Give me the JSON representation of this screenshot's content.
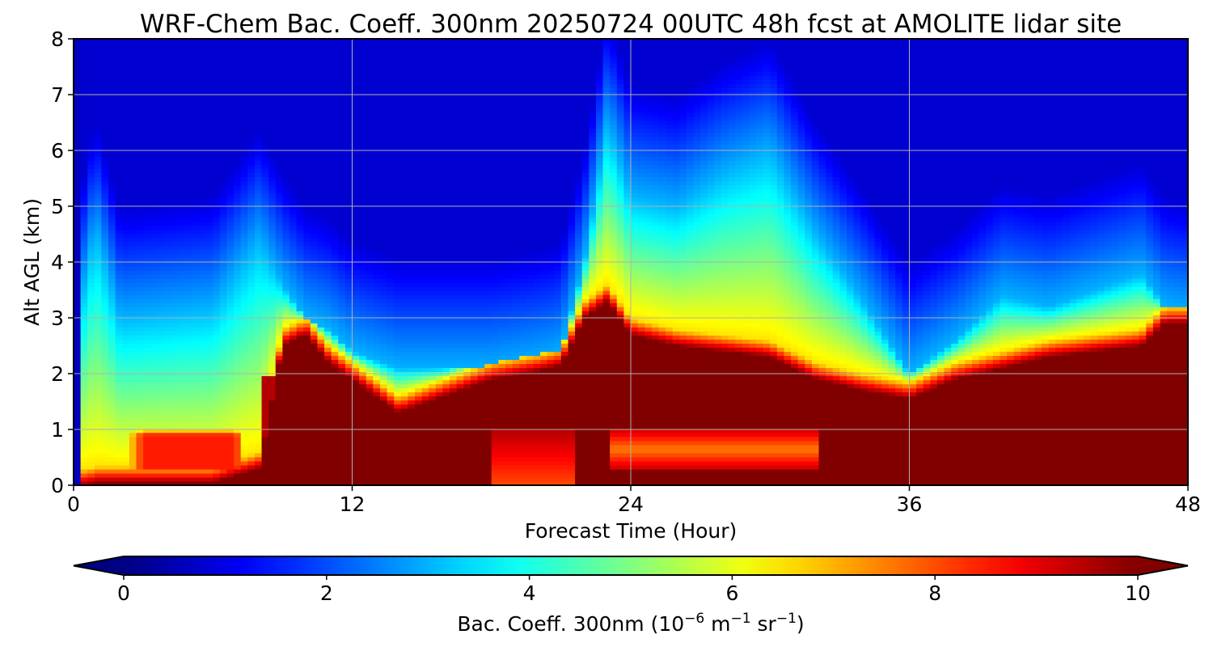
{
  "chart_data": {
    "type": "heatmap",
    "title": "WRF-Chem Bac. Coeff. 300nm  20250724 00UTC 48h fcst at AMOLITE lidar site",
    "xlabel": "Forecast Time (Hour)",
    "ylabel": "Alt AGL (km)",
    "xlim": [
      0,
      48
    ],
    "ylim": [
      0,
      8
    ],
    "xticks": [
      0,
      12,
      24,
      36,
      48
    ],
    "yticks": [
      0,
      1,
      2,
      3,
      4,
      5,
      6,
      7,
      8
    ],
    "grid": true,
    "colormap": "jet",
    "colorbar": {
      "label_main": "Bac. Coeff. 300nm  (10",
      "label_exp1": "−6",
      "label_unit1": " m",
      "label_exp2": "−1",
      "label_unit2": " sr",
      "label_exp3": "−1",
      "label_close": ")",
      "range": [
        0,
        10
      ],
      "ticks": [
        0,
        2,
        4,
        6,
        8,
        10
      ],
      "extend": "both",
      "orientation": "horizontal"
    },
    "time_hours": [
      0,
      0.5,
      1,
      2,
      4,
      6,
      8,
      9,
      10,
      11,
      12,
      14,
      16,
      18,
      20,
      21,
      22,
      23,
      24,
      26,
      28,
      30,
      32,
      34,
      36,
      38,
      40,
      42,
      44,
      46,
      47,
      48
    ],
    "saturated_layer_top_km": [
      0,
      0,
      0.05,
      0.05,
      0.05,
      0.05,
      0.3,
      2.5,
      2.7,
      2.2,
      1.9,
      1.3,
      1.6,
      1.9,
      2.05,
      2.15,
      3.0,
      3.3,
      2.7,
      2.5,
      2.4,
      2.3,
      1.9,
      1.7,
      1.55,
      1.9,
      2.1,
      2.3,
      2.4,
      2.5,
      2.9,
      2.9
    ],
    "aerosol_top_km": [
      0,
      4.0,
      4.5,
      3.0,
      3.1,
      3.2,
      4.4,
      3.6,
      3.0,
      2.8,
      2.4,
      2.1,
      2.1,
      2.1,
      2.2,
      2.4,
      4.0,
      6.5,
      5.2,
      5.0,
      5.6,
      6.0,
      4.5,
      3.3,
      2.0,
      2.6,
      3.4,
      3.2,
      3.5,
      3.8,
      3.2,
      3.1
    ],
    "near_surface_enhancement": {
      "0.5_to_8h_0.3_to_1.3km": 8.5,
      "18_to_21h_0_to_1km": 8.0,
      "23_to_32h_0.3_to_1km": 7.5
    }
  }
}
